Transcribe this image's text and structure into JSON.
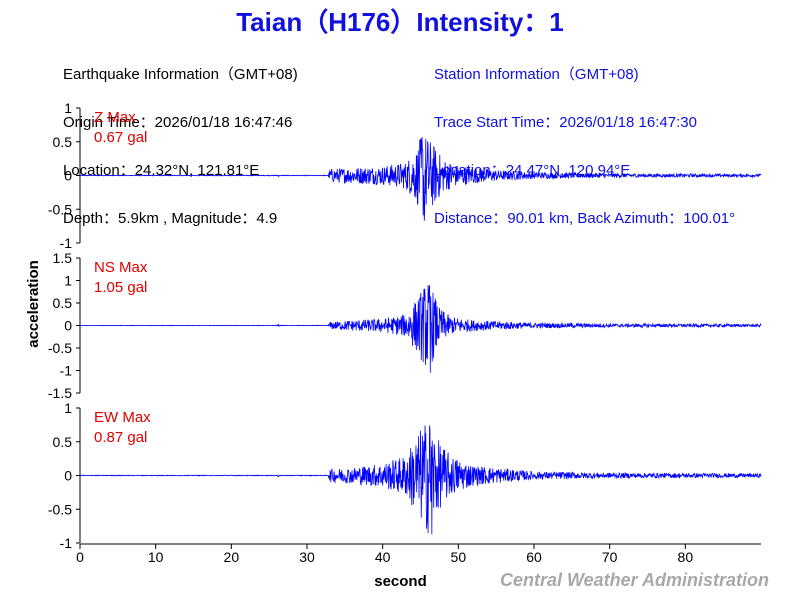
{
  "title": "Taian（H176）Intensity：1",
  "earthquake": {
    "heading": "Earthquake Information（GMT+08)",
    "origin_time": "Origin Time：2026/01/18 16:47:46",
    "location": "Location：24.32°N, 121.81°E",
    "depth_mag": "Depth：5.9km , Magnitude：4.9"
  },
  "station": {
    "heading": "Station Information（GMT+08)",
    "trace_start": "Trace Start Time：2026/01/18 16:47:30",
    "location": "Location：24.47°N, 120.94°E",
    "distance": "Distance：90.01 km, Back Azimuth：100.01°"
  },
  "watermark": "Central Weather Administration",
  "colors": {
    "title": "#1010e0",
    "trace": "#0000ff",
    "label": "#e00000",
    "axis": "#000000"
  },
  "chart_data": {
    "type": "line",
    "xlabel": "second",
    "ylabel": "acceleration",
    "xlim": [
      0,
      90
    ],
    "x_ticks": [
      0,
      10,
      20,
      30,
      40,
      50,
      60,
      70,
      80
    ],
    "panels": [
      {
        "name": "Z Max",
        "max_label": "0.67 gal",
        "max_value": 0.67,
        "ylim": [
          -1,
          1
        ],
        "y_ticks": [
          1,
          0.5,
          0,
          -0.5,
          -1
        ],
        "peak_time": 45.5,
        "envelope": [
          [
            0,
            0.005
          ],
          [
            26,
            0.005
          ],
          [
            26.2,
            0.02
          ],
          [
            26.4,
            0.005
          ],
          [
            32.8,
            0.005
          ],
          [
            33,
            0.1
          ],
          [
            36,
            0.12
          ],
          [
            40,
            0.14
          ],
          [
            43,
            0.2
          ],
          [
            44.5,
            0.4
          ],
          [
            45.3,
            0.67
          ],
          [
            46.5,
            0.5
          ],
          [
            48,
            0.25
          ],
          [
            50,
            0.15
          ],
          [
            55,
            0.08
          ],
          [
            60,
            0.05
          ],
          [
            70,
            0.03
          ],
          [
            90,
            0.02
          ]
        ]
      },
      {
        "name": "NS Max",
        "max_label": "1.05 gal",
        "max_value": 1.05,
        "ylim": [
          -1.5,
          1.5
        ],
        "y_ticks": [
          1.5,
          1,
          0.5,
          0,
          -0.5,
          -1,
          -1.5
        ],
        "peak_time": 46.3,
        "envelope": [
          [
            0,
            0.005
          ],
          [
            26,
            0.005
          ],
          [
            26.2,
            0.03
          ],
          [
            26.4,
            0.005
          ],
          [
            32.8,
            0.005
          ],
          [
            33,
            0.08
          ],
          [
            36,
            0.12
          ],
          [
            40,
            0.15
          ],
          [
            43,
            0.25
          ],
          [
            44.5,
            0.6
          ],
          [
            46,
            1.05
          ],
          [
            47.5,
            0.4
          ],
          [
            49,
            0.2
          ],
          [
            52,
            0.12
          ],
          [
            60,
            0.06
          ],
          [
            70,
            0.04
          ],
          [
            90,
            0.03
          ]
        ]
      },
      {
        "name": "EW Max",
        "max_label": "0.87 gal",
        "max_value": 0.87,
        "ylim": [
          -1,
          1
        ],
        "y_ticks": [
          1,
          0.5,
          0,
          -0.5,
          -1
        ],
        "peak_time": 46.5,
        "envelope": [
          [
            0,
            0.005
          ],
          [
            26,
            0.005
          ],
          [
            26.2,
            0.02
          ],
          [
            26.4,
            0.005
          ],
          [
            32.8,
            0.005
          ],
          [
            33,
            0.1
          ],
          [
            36,
            0.12
          ],
          [
            40,
            0.18
          ],
          [
            43,
            0.3
          ],
          [
            44.5,
            0.6
          ],
          [
            46,
            0.87
          ],
          [
            47.5,
            0.5
          ],
          [
            49,
            0.3
          ],
          [
            52,
            0.15
          ],
          [
            60,
            0.06
          ],
          [
            70,
            0.04
          ],
          [
            90,
            0.03
          ]
        ]
      }
    ]
  }
}
